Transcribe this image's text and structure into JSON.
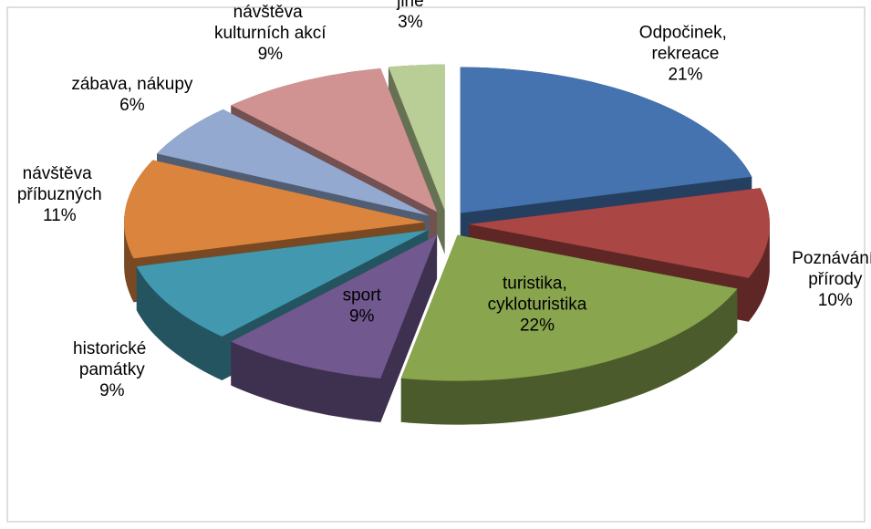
{
  "chart_data": {
    "type": "pie3d",
    "categories": [
      "Odpočinek, rekreace",
      "Poznávání přírody",
      "turistika, cykloturistika",
      "sport",
      "historické památky",
      "návštěva příbuzných",
      "zábava, nákupy",
      "návštěva kulturních akcí",
      "jiné"
    ],
    "values": [
      21,
      10,
      22,
      9,
      9,
      11,
      6,
      9,
      3
    ],
    "value_labels": [
      "21%",
      "10%",
      "22%",
      "9%",
      "9%",
      "11%",
      "6%",
      "9%",
      "3%"
    ],
    "colors": [
      "#4473b0",
      "#aa4643",
      "#89a54e",
      "#71588f",
      "#4198af",
      "#db843d",
      "#93a9cf",
      "#d19392",
      "#b9cd96"
    ]
  }
}
